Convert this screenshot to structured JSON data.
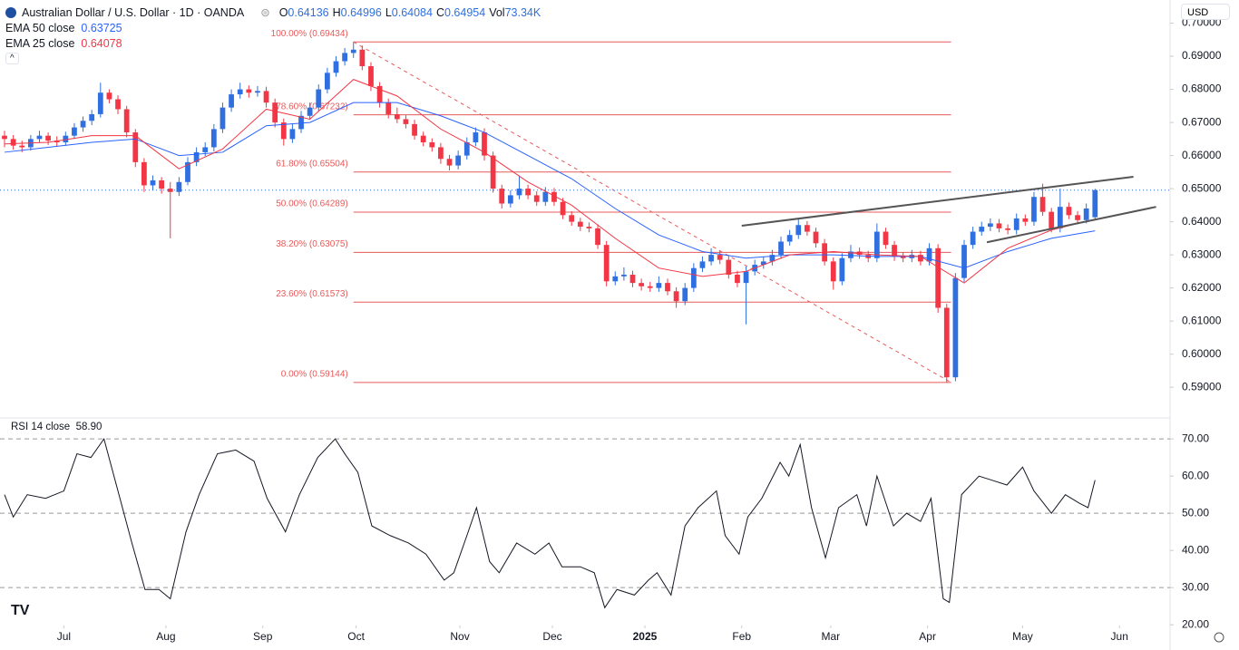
{
  "chart_data": {
    "type": "candlestick",
    "header": {
      "symbol": "Australian Dollar / U.S. Dollar · 1D · OANDA",
      "keys": [
        "O",
        "H",
        "L",
        "C"
      ],
      "volume_key": "Vol",
      "volume": "73.34K",
      "currency": "USD"
    },
    "xlim": [
      -0.52,
      133.6
    ],
    "xticks": [
      {
        "value": 6.8,
        "label": "Jul"
      },
      {
        "value": 18.5,
        "label": "Aug"
      },
      {
        "value": 29.6,
        "label": "Sep"
      },
      {
        "value": 40.3,
        "label": "Oct"
      },
      {
        "value": 52.2,
        "label": "Nov"
      },
      {
        "value": 62.8,
        "label": "Dec"
      },
      {
        "value": 73.4,
        "label": "2025"
      },
      {
        "value": 84.5,
        "label": "Feb"
      },
      {
        "value": 94.7,
        "label": "Mar"
      },
      {
        "value": 105.8,
        "label": "Apr"
      },
      {
        "value": 116.7,
        "label": "May"
      },
      {
        "value": 127.8,
        "label": "Jun"
      }
    ],
    "ylim": [
      0.581,
      0.707
    ],
    "yticks": [
      {
        "value": 0.59,
        "label": "0.59000"
      },
      {
        "value": 0.6,
        "label": "0.60000"
      },
      {
        "value": 0.61,
        "label": "0.61000"
      },
      {
        "value": 0.62,
        "label": "0.62000"
      },
      {
        "value": 0.63,
        "label": "0.63000"
      },
      {
        "value": 0.64,
        "label": "0.64000"
      },
      {
        "value": 0.65,
        "label": "0.65000"
      },
      {
        "value": 0.66,
        "label": "0.66000"
      },
      {
        "value": 0.67,
        "label": "0.67000"
      },
      {
        "value": 0.68,
        "label": "0.68000"
      },
      {
        "value": 0.69,
        "label": "0.69000"
      },
      {
        "value": 0.7,
        "label": "0.70000"
      }
    ],
    "up_color": "#2f6fe0",
    "down_color": "#f23645",
    "candles": [
      [
        0.666,
        0.6675,
        0.6625,
        0.665
      ],
      [
        0.665,
        0.6662,
        0.6618,
        0.663
      ],
      [
        0.663,
        0.6645,
        0.661,
        0.6625
      ],
      [
        0.6625,
        0.6662,
        0.6615,
        0.665
      ],
      [
        0.665,
        0.6675,
        0.664,
        0.666
      ],
      [
        0.666,
        0.667,
        0.6632,
        0.6645
      ],
      [
        0.6645,
        0.6658,
        0.6628,
        0.664
      ],
      [
        0.664,
        0.6672,
        0.663,
        0.666
      ],
      [
        0.666,
        0.6698,
        0.665,
        0.6685
      ],
      [
        0.6685,
        0.6718,
        0.6672,
        0.6705
      ],
      [
        0.6705,
        0.6738,
        0.6692,
        0.6725
      ],
      [
        0.6725,
        0.682,
        0.6715,
        0.679
      ],
      [
        0.679,
        0.68,
        0.6758,
        0.677
      ],
      [
        0.677,
        0.6782,
        0.6725,
        0.674
      ],
      [
        0.674,
        0.675,
        0.6655,
        0.667
      ],
      [
        0.667,
        0.668,
        0.6565,
        0.658
      ],
      [
        0.658,
        0.6592,
        0.649,
        0.651
      ],
      [
        0.651,
        0.654,
        0.6495,
        0.6525
      ],
      [
        0.6525,
        0.6535,
        0.6485,
        0.65
      ],
      [
        0.65,
        0.652,
        0.635,
        0.649
      ],
      [
        0.649,
        0.6535,
        0.6478,
        0.652
      ],
      [
        0.652,
        0.6595,
        0.651,
        0.658
      ],
      [
        0.658,
        0.6625,
        0.6568,
        0.661
      ],
      [
        0.661,
        0.664,
        0.6598,
        0.6625
      ],
      [
        0.6625,
        0.6695,
        0.6612,
        0.668
      ],
      [
        0.668,
        0.676,
        0.6668,
        0.6745
      ],
      [
        0.6745,
        0.68,
        0.6732,
        0.6785
      ],
      [
        0.6785,
        0.682,
        0.6772,
        0.68
      ],
      [
        0.68,
        0.6812,
        0.6775,
        0.679
      ],
      [
        0.679,
        0.681,
        0.6778,
        0.6795
      ],
      [
        0.6795,
        0.6808,
        0.6745,
        0.676
      ],
      [
        0.676,
        0.6772,
        0.6685,
        0.67
      ],
      [
        0.67,
        0.6712,
        0.663,
        0.665
      ],
      [
        0.665,
        0.6695,
        0.6638,
        0.668
      ],
      [
        0.668,
        0.6735,
        0.6668,
        0.672
      ],
      [
        0.672,
        0.676,
        0.6708,
        0.6745
      ],
      [
        0.6745,
        0.6815,
        0.6732,
        0.68
      ],
      [
        0.68,
        0.6865,
        0.6788,
        0.685
      ],
      [
        0.685,
        0.69,
        0.6838,
        0.6885
      ],
      [
        0.6885,
        0.6925,
        0.6872,
        0.691
      ],
      [
        0.691,
        0.6943,
        0.6895,
        0.692
      ],
      [
        0.692,
        0.6932,
        0.6858,
        0.687
      ],
      [
        0.687,
        0.6882,
        0.6795,
        0.681
      ],
      [
        0.681,
        0.6822,
        0.6745,
        0.676
      ],
      [
        0.676,
        0.6772,
        0.6712,
        0.6725
      ],
      [
        0.6725,
        0.6745,
        0.6698,
        0.671
      ],
      [
        0.671,
        0.6722,
        0.6682,
        0.6695
      ],
      [
        0.6695,
        0.6708,
        0.6648,
        0.666
      ],
      [
        0.666,
        0.6672,
        0.6628,
        0.664
      ],
      [
        0.664,
        0.6652,
        0.6612,
        0.6625
      ],
      [
        0.6625,
        0.6638,
        0.6575,
        0.659
      ],
      [
        0.659,
        0.6602,
        0.6555,
        0.657
      ],
      [
        0.657,
        0.6615,
        0.6558,
        0.66
      ],
      [
        0.66,
        0.6655,
        0.6588,
        0.664
      ],
      [
        0.664,
        0.6685,
        0.6628,
        0.667
      ],
      [
        0.667,
        0.6682,
        0.6585,
        0.66
      ],
      [
        0.66,
        0.6612,
        0.6488,
        0.65
      ],
      [
        0.65,
        0.6512,
        0.644,
        0.6455
      ],
      [
        0.6455,
        0.6495,
        0.6443,
        0.648
      ],
      [
        0.648,
        0.654,
        0.6468,
        0.65
      ],
      [
        0.65,
        0.6512,
        0.6468,
        0.648
      ],
      [
        0.648,
        0.6492,
        0.6448,
        0.646
      ],
      [
        0.646,
        0.6505,
        0.6448,
        0.649
      ],
      [
        0.649,
        0.6502,
        0.6448,
        0.646
      ],
      [
        0.646,
        0.6472,
        0.6408,
        0.642
      ],
      [
        0.642,
        0.6432,
        0.6388,
        0.64
      ],
      [
        0.64,
        0.6412,
        0.6372,
        0.6385
      ],
      [
        0.6385,
        0.6398,
        0.6368,
        0.638
      ],
      [
        0.638,
        0.6392,
        0.6318,
        0.633
      ],
      [
        0.633,
        0.6342,
        0.6205,
        0.622
      ],
      [
        0.622,
        0.625,
        0.6208,
        0.6235
      ],
      [
        0.6235,
        0.6262,
        0.6222,
        0.624
      ],
      [
        0.624,
        0.6252,
        0.6202,
        0.6215
      ],
      [
        0.6215,
        0.6228,
        0.6192,
        0.6205
      ],
      [
        0.6205,
        0.6218,
        0.6188,
        0.62
      ],
      [
        0.62,
        0.6235,
        0.6188,
        0.6215
      ],
      [
        0.6215,
        0.6228,
        0.6178,
        0.619
      ],
      [
        0.619,
        0.6202,
        0.614,
        0.616
      ],
      [
        0.616,
        0.6215,
        0.6148,
        0.62
      ],
      [
        0.62,
        0.6275,
        0.6188,
        0.626
      ],
      [
        0.626,
        0.6295,
        0.6248,
        0.628
      ],
      [
        0.628,
        0.632,
        0.6268,
        0.63
      ],
      [
        0.63,
        0.6312,
        0.6272,
        0.6285
      ],
      [
        0.6285,
        0.6298,
        0.6228,
        0.624
      ],
      [
        0.624,
        0.6252,
        0.6202,
        0.6215
      ],
      [
        0.6215,
        0.6265,
        0.609,
        0.625
      ],
      [
        0.625,
        0.6285,
        0.6238,
        0.627
      ],
      [
        0.627,
        0.6295,
        0.6258,
        0.628
      ],
      [
        0.628,
        0.6315,
        0.6268,
        0.63
      ],
      [
        0.63,
        0.6355,
        0.6288,
        0.634
      ],
      [
        0.634,
        0.6375,
        0.6328,
        0.636
      ],
      [
        0.636,
        0.641,
        0.6348,
        0.639
      ],
      [
        0.639,
        0.6402,
        0.6358,
        0.637
      ],
      [
        0.637,
        0.6382,
        0.6322,
        0.6335
      ],
      [
        0.6335,
        0.6348,
        0.6268,
        0.628
      ],
      [
        0.628,
        0.6292,
        0.6195,
        0.622
      ],
      [
        0.622,
        0.6305,
        0.6208,
        0.629
      ],
      [
        0.629,
        0.633,
        0.6278,
        0.631
      ],
      [
        0.631,
        0.6322,
        0.6288,
        0.63
      ],
      [
        0.63,
        0.6312,
        0.6278,
        0.629
      ],
      [
        0.629,
        0.6395,
        0.6278,
        0.637
      ],
      [
        0.637,
        0.6382,
        0.6318,
        0.633
      ],
      [
        0.633,
        0.6342,
        0.6282,
        0.6295
      ],
      [
        0.6295,
        0.6308,
        0.6278,
        0.629
      ],
      [
        0.629,
        0.6315,
        0.6278,
        0.63
      ],
      [
        0.63,
        0.6312,
        0.6268,
        0.628
      ],
      [
        0.628,
        0.6335,
        0.6268,
        0.632
      ],
      [
        0.632,
        0.6332,
        0.6125,
        0.614
      ],
      [
        0.614,
        0.6152,
        0.5914,
        0.593
      ],
      [
        0.593,
        0.6245,
        0.5918,
        0.623
      ],
      [
        0.623,
        0.6345,
        0.6218,
        0.633
      ],
      [
        0.633,
        0.6385,
        0.6318,
        0.637
      ],
      [
        0.637,
        0.64,
        0.6358,
        0.6385
      ],
      [
        0.6385,
        0.641,
        0.6372,
        0.6395
      ],
      [
        0.6395,
        0.6408,
        0.6368,
        0.638
      ],
      [
        0.638,
        0.6392,
        0.6362,
        0.6375
      ],
      [
        0.6375,
        0.6425,
        0.6362,
        0.641
      ],
      [
        0.641,
        0.6422,
        0.6388,
        0.64
      ],
      [
        0.64,
        0.649,
        0.6388,
        0.6475
      ],
      [
        0.6475,
        0.6515,
        0.6418,
        0.643
      ],
      [
        0.643,
        0.6442,
        0.6368,
        0.638
      ],
      [
        0.638,
        0.65,
        0.6368,
        0.6445
      ],
      [
        0.6445,
        0.6458,
        0.6408,
        0.642
      ],
      [
        0.642,
        0.6432,
        0.6392,
        0.6405
      ],
      [
        0.6405,
        0.6455,
        0.6395,
        0.644
      ],
      [
        0.64136,
        0.64996,
        0.64084,
        0.64954
      ]
    ],
    "series": [
      {
        "name": "EMA 50 close",
        "color": "#2962ff",
        "x": [
          0,
          5,
          10,
          15,
          20,
          25,
          30,
          35,
          40,
          45,
          50,
          55,
          60,
          65,
          70,
          75,
          80,
          85,
          90,
          95,
          100,
          105,
          110,
          115,
          120,
          125
        ],
        "values": [
          0.661,
          0.6625,
          0.664,
          0.665,
          0.66,
          0.661,
          0.669,
          0.67,
          0.676,
          0.676,
          0.672,
          0.667,
          0.66,
          0.653,
          0.644,
          0.636,
          0.631,
          0.629,
          0.63,
          0.63,
          0.6295,
          0.6295,
          0.626,
          0.631,
          0.635,
          0.63725
        ]
      },
      {
        "name": "EMA 25 close",
        "color": "#f23645",
        "x": [
          0,
          5,
          10,
          15,
          20,
          25,
          30,
          35,
          40,
          45,
          50,
          55,
          60,
          65,
          70,
          75,
          80,
          85,
          90,
          95,
          100,
          105,
          110,
          115,
          120,
          125
        ],
        "values": [
          0.6635,
          0.664,
          0.666,
          0.666,
          0.656,
          0.662,
          0.674,
          0.671,
          0.683,
          0.678,
          0.668,
          0.661,
          0.652,
          0.645,
          0.635,
          0.626,
          0.6235,
          0.625,
          0.63,
          0.631,
          0.63,
          0.6295,
          0.6215,
          0.632,
          0.6375,
          0.64078
        ]
      }
    ],
    "fib": {
      "color": "#e85a5a",
      "start": 40,
      "end": 108.5,
      "levels": [
        {
          "label": "100.00% (0.69434)",
          "value": 0.69434
        },
        {
          "label": "78.60% (0.67232)",
          "value": 0.67232
        },
        {
          "label": "61.80% (0.65504)",
          "value": 0.65504
        },
        {
          "label": "50.00% (0.64289)",
          "value": 0.64289
        },
        {
          "label": "38.20% (0.63075)",
          "value": 0.63075
        },
        {
          "label": "23.60% (0.61573)",
          "value": 0.61573
        },
        {
          "label": "0.00% (0.59144)",
          "value": 0.59144
        }
      ]
    },
    "trendlines": [
      {
        "x": [
          84.5,
          129.4
        ],
        "values": [
          0.6388,
          0.6536
        ]
      },
      {
        "x": [
          112.6,
          132
        ],
        "values": [
          0.6338,
          0.6445
        ]
      }
    ],
    "rsi": {
      "name": "RSI 14 close",
      "last_label": "58.90",
      "color": "#131722",
      "ylim": [
        19.8,
        75.4
      ],
      "yticks": [
        {
          "value": 20,
          "label": "20.00"
        },
        {
          "value": 30,
          "label": "30.00"
        },
        {
          "value": 40,
          "label": "40.00"
        },
        {
          "value": 50,
          "label": "50.00"
        },
        {
          "value": 60,
          "label": "60.00"
        },
        {
          "value": 70,
          "label": "70.00"
        }
      ],
      "bands": [
        70,
        50,
        30
      ],
      "x": [
        0,
        1,
        2.6,
        4.7,
        6.8,
        8.3,
        9.9,
        11.4,
        13,
        14.6,
        16.1,
        17.7,
        19,
        20.8,
        22.3,
        24.4,
        26.5,
        28.6,
        30.1,
        32.2,
        33.8,
        35.9,
        37.9,
        39,
        40.5,
        42.1,
        44.2,
        46.3,
        48.3,
        50.4,
        51.5,
        53,
        54.1,
        55.6,
        56.7,
        58.7,
        60.8,
        62.4,
        63.9,
        66,
        67.6,
        68.8,
        70.2,
        72.2,
        73.8,
        74.8,
        76.4,
        78,
        79.5,
        81.6,
        82.6,
        84.2,
        85.2,
        86.8,
        88.9,
        89.9,
        91.2,
        92.5,
        94.1,
        95.6,
        97.7,
        98.8,
        100,
        101.9,
        103.4,
        105,
        106.2,
        107.6,
        108.3,
        109.7,
        111.7,
        113.3,
        114.9,
        116.7,
        118,
        120,
        121.6,
        123.2,
        124.2,
        125
      ],
      "values": [
        55,
        49,
        55,
        54,
        56,
        66,
        65,
        70,
        56,
        42,
        29.5,
        29.5,
        27,
        45,
        55,
        66,
        67,
        64,
        54,
        45,
        55,
        65,
        70,
        66,
        61,
        46.6,
        44,
        42,
        39,
        32,
        34,
        44,
        51.5,
        37,
        34,
        42,
        39,
        42,
        35.6,
        35.6,
        34,
        24.6,
        29.5,
        28,
        32,
        34,
        28,
        46.6,
        51.5,
        56,
        44,
        39,
        49,
        54,
        63.7,
        60,
        68.5,
        51.5,
        38,
        51.5,
        55,
        46.6,
        60,
        46.6,
        50,
        47.8,
        54,
        27,
        26,
        55,
        60,
        58.8,
        57.6,
        62.4,
        56,
        50,
        55,
        52.7,
        51.5,
        58.9
      ]
    }
  }
}
